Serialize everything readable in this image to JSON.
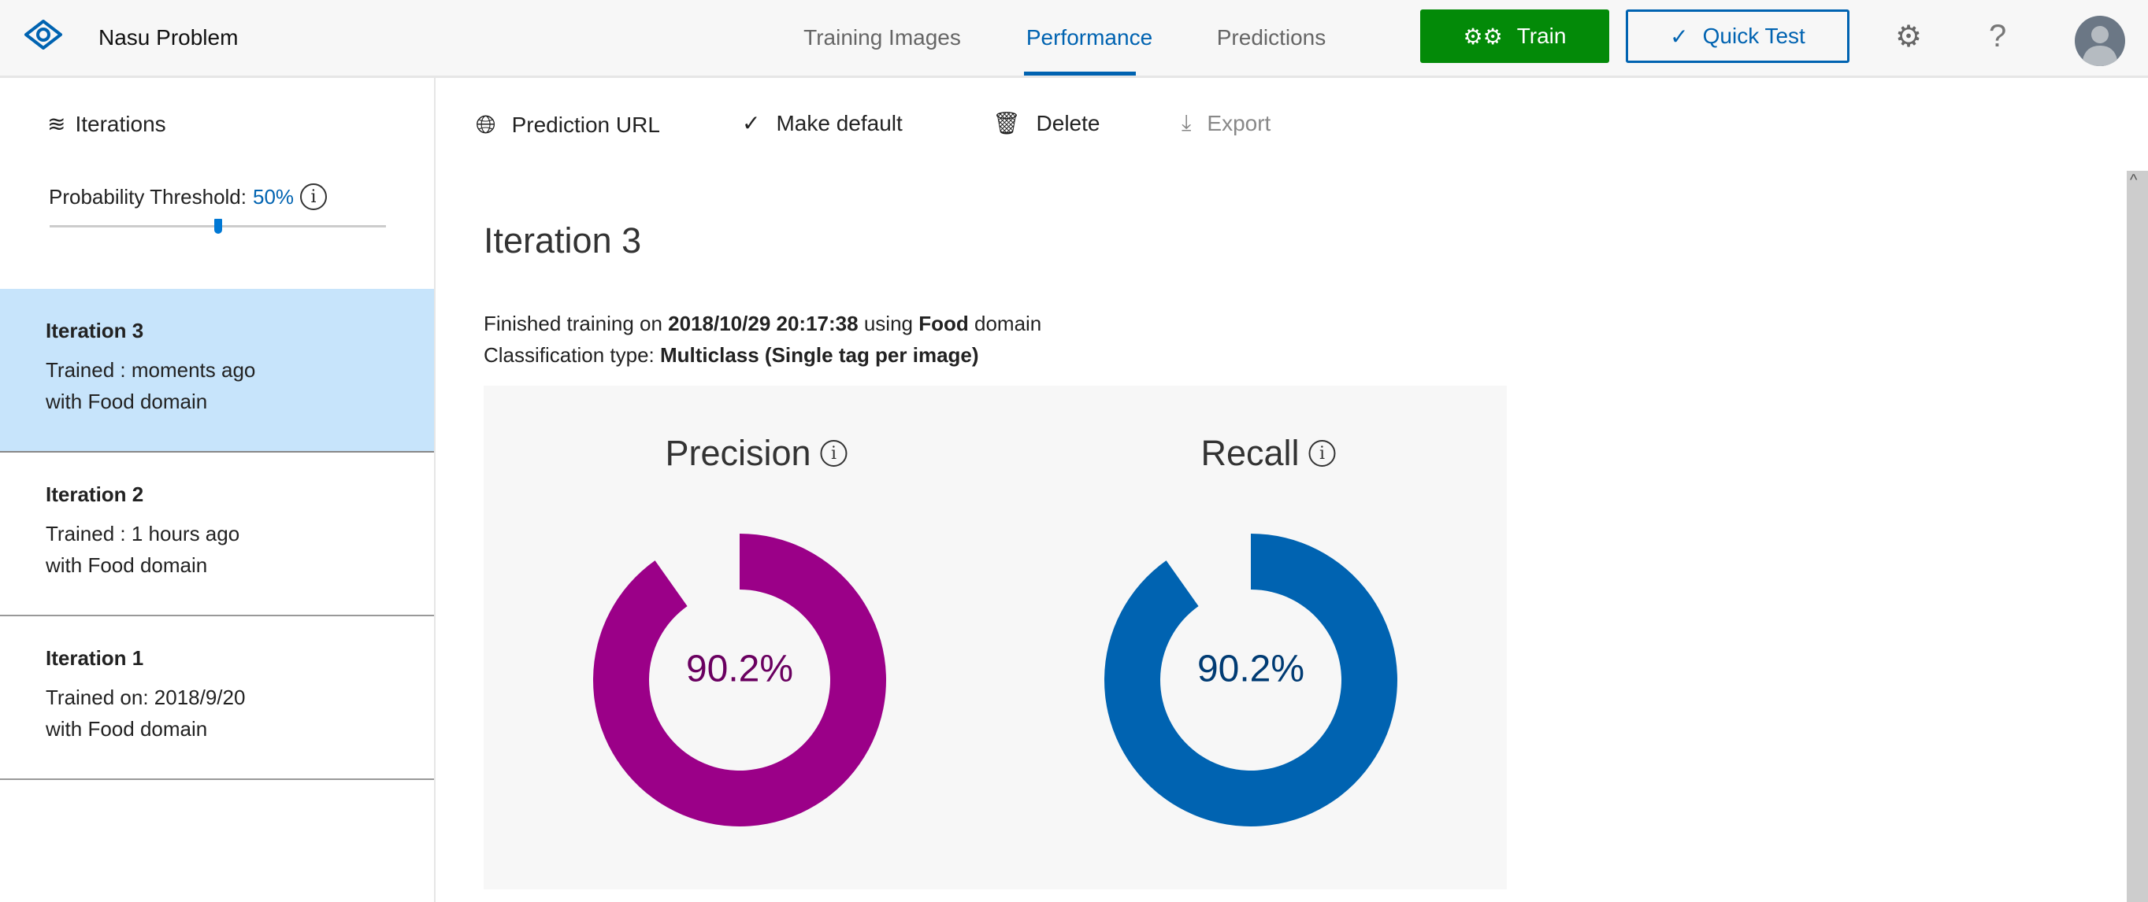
{
  "header": {
    "app_title": "Nasu Problem",
    "tabs": [
      {
        "label": "Training Images"
      },
      {
        "label": "Performance",
        "active": true
      },
      {
        "label": "Predictions"
      }
    ],
    "train_label": "Train",
    "quick_test_label": "Quick Test",
    "icons": [
      "eye-logo-icon",
      "gears-icon",
      "check-icon",
      "settings-icon",
      "help-icon",
      "avatar"
    ]
  },
  "sidebar": {
    "heading": "Iterations",
    "threshold_label": "Probability Threshold:",
    "threshold_value": "50%",
    "threshold_fraction": 0.5,
    "items": [
      {
        "name": "Iteration 3",
        "line1": "Trained : moments ago",
        "line2": "with Food domain",
        "selected": true
      },
      {
        "name": "Iteration 2",
        "line1": "Trained : 1 hours ago",
        "line2": "with Food domain"
      },
      {
        "name": "Iteration 1",
        "line1": "Trained on: 2018/9/20",
        "line2": "with Food domain"
      }
    ]
  },
  "toolbar": {
    "prediction_url": "Prediction URL",
    "make_default": "Make default",
    "delete": "Delete",
    "export": "Export"
  },
  "main": {
    "title": "Iteration 3",
    "finished_prefix": "Finished training on",
    "finished_date": "2018/10/29 20:17:38",
    "using": "using",
    "domain": "Food",
    "domain_suffix": "domain",
    "class_prefix": "Classification type:",
    "class_value": "Multiclass (Single tag per image)"
  },
  "metrics": [
    {
      "label": "Precision",
      "value": 90.2,
      "display": "90.2%",
      "color": "#9b0088",
      "text_color": "#6a0060"
    },
    {
      "label": "Recall",
      "value": 90.2,
      "display": "90.2%",
      "color": "#0063b1",
      "text_color": "#003b73"
    }
  ]
}
